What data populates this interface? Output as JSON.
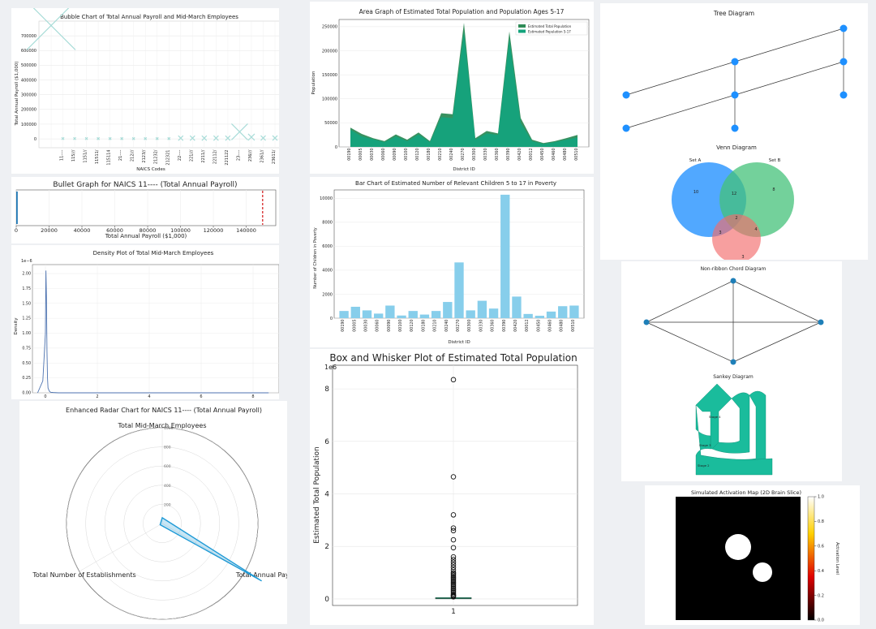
{
  "chart_data": [
    {
      "id": "bubble",
      "type": "scatter",
      "title": "Bubble Chart of Total Annual Payroll and Mid-March Employees",
      "xlabel": "NAICS Codes",
      "ylabel": "Total Annual Payroll ($1,000)",
      "ylim": [
        -60000,
        800000
      ],
      "yticks": [
        "0",
        "100000",
        "200000",
        "300000",
        "400000",
        "500000",
        "600000",
        "700000"
      ],
      "yticks_values": [
        0,
        100000,
        200000,
        300000,
        400000,
        500000,
        600000,
        700000
      ],
      "categories": [
        "------",
        "11----",
        "115///",
        "1151//",
        "11511/",
        "115114",
        "21----",
        "212///",
        "2123//",
        "21232/",
        "212321",
        "22----",
        "221///",
        "2211//",
        "22112/",
        "221122",
        "23----",
        "236///",
        "2361//",
        "23611/"
      ],
      "xtick_labels": [
        "",
        "11----",
        "115///",
        "1151//",
        "11511/",
        "115114",
        "21----",
        "212///",
        "2123//",
        "21232/",
        "212321",
        "22----",
        "221///",
        "2211//",
        "22112/",
        "221122",
        "23----",
        "236///",
        "2361//",
        "23611/"
      ],
      "values": [
        770000,
        2000,
        2000,
        2000,
        1800,
        1500,
        1500,
        1800,
        1800,
        1800,
        1500,
        5000,
        5000,
        5000,
        5000,
        5000,
        48000,
        12000,
        6000,
        6000
      ],
      "sizes": [
        60,
        3,
        3,
        3,
        3,
        3,
        3,
        3,
        3,
        3,
        3,
        6,
        6,
        6,
        6,
        6,
        20,
        8,
        6,
        6
      ]
    },
    {
      "id": "bullet",
      "type": "bar",
      "title": "Bullet Graph for NAICS 11---- (Total Annual Payroll)",
      "xlabel": "Total Annual Payroll ($1,000)",
      "xlim": [
        0,
        158000
      ],
      "xticks": [
        "0",
        "20000",
        "40000",
        "60000",
        "80000",
        "100000",
        "120000",
        "140000"
      ],
      "xticks_values": [
        0,
        20000,
        40000,
        60000,
        80000,
        100000,
        120000,
        140000
      ],
      "value": 900,
      "target": 150000
    },
    {
      "id": "density",
      "type": "line",
      "title": "Density Plot of Total Mid-March Employees",
      "ylabel": "Density",
      "offset_label": "1e−6",
      "xlim": [
        -0.5,
        9.0
      ],
      "ylim": [
        0,
        2.15
      ],
      "xticks": [
        "0",
        "2",
        "4",
        "6",
        "8"
      ],
      "xticks_values": [
        0,
        2,
        4,
        6,
        8
      ],
      "yticks": [
        "0.00",
        "0.25",
        "0.50",
        "0.75",
        "1.00",
        "1.25",
        "1.50",
        "1.75",
        "2.00"
      ],
      "yticks_values": [
        0,
        0.25,
        0.5,
        0.75,
        1.0,
        1.25,
        1.5,
        1.75,
        2.0
      ],
      "x": [
        -0.3,
        -0.1,
        0.0,
        0.02,
        0.04,
        0.06,
        0.08,
        0.1,
        0.15,
        0.2,
        0.3,
        0.5,
        1.0,
        8.6
      ],
      "y": [
        0,
        0.2,
        1.0,
        2.05,
        1.6,
        0.7,
        0.25,
        0.08,
        0.03,
        0.01,
        0.005,
        0,
        0,
        0
      ]
    },
    {
      "id": "radar",
      "type": "line",
      "title": "Enhanced Radar Chart for NAICS 11---- (Total Annual Payroll)",
      "axes": [
        "Total Mid-March Employees",
        "Total Annual Payroll",
        "Total Number of Establishments"
      ],
      "rlim": [
        0,
        1000
      ],
      "rticks": [
        "200",
        "400",
        "600",
        "800",
        "1000"
      ],
      "rticks_values": [
        200,
        400,
        600,
        800,
        1000
      ],
      "values": [
        60,
        1300,
        25
      ]
    },
    {
      "id": "area",
      "type": "area",
      "title": "Area Graph of Estimated Total Population and Population Ages 5-17",
      "xlabel": "District ID",
      "ylabel": "Population",
      "ylim": [
        0,
        265000
      ],
      "legend_position": "top-right",
      "categories": [
        "00190",
        "00005",
        "00030",
        "00060",
        "00090",
        "00100",
        "00120",
        "00180",
        "00210",
        "00240",
        "00270",
        "00300",
        "00330",
        "00360",
        "00390",
        "00420",
        "00012",
        "00450",
        "00460",
        "00480",
        "00510"
      ],
      "xtick_labels": [
        "00190",
        "00005",
        "00030",
        "00060",
        "00090",
        "00100",
        "00120",
        "00180",
        "00210",
        "00240",
        "00270",
        "00300",
        "00330",
        "00360",
        "00390",
        "00420",
        "00012",
        "00450",
        "00460",
        "00480",
        "00510"
      ],
      "yticks": [
        "0",
        "50000",
        "100000",
        "150000",
        "200000",
        "250000"
      ],
      "yticks_values": [
        0,
        50000,
        100000,
        150000,
        200000,
        250000
      ],
      "series": [
        {
          "name": "Estimated Total Population",
          "values": [
            40000,
            27000,
            18000,
            12000,
            26000,
            15000,
            30000,
            12000,
            70000,
            68000,
            258000,
            18000,
            33000,
            28000,
            240000,
            60000,
            15000,
            8000,
            12000,
            18000,
            25000
          ]
        },
        {
          "name": "Estimated Population 5-17",
          "values": [
            36000,
            22000,
            16000,
            10000,
            22000,
            12000,
            26000,
            10000,
            62000,
            60000,
            240000,
            15000,
            28000,
            25000,
            225000,
            50000,
            12000,
            6000,
            10000,
            15000,
            20000
          ]
        }
      ]
    },
    {
      "id": "poverty",
      "type": "bar",
      "title": "Bar Chart of Estimated Number of Relevant Children 5 to 17 in Poverty",
      "xlabel": "District ID",
      "ylabel": "Number of Children in Poverty",
      "ylim": [
        0,
        10700
      ],
      "yticks": [
        "0",
        "2000",
        "4000",
        "6000",
        "8000",
        "10000"
      ],
      "yticks_values": [
        0,
        2000,
        4000,
        6000,
        8000,
        10000
      ],
      "categories": [
        "00190",
        "00005",
        "00030",
        "00060",
        "00090",
        "00100",
        "00120",
        "00180",
        "00210",
        "00240",
        "00270",
        "00300",
        "00330",
        "00360",
        "00390",
        "00420",
        "00012",
        "00450",
        "00460",
        "00480",
        "00510"
      ],
      "xtick_labels": [
        "00190",
        "00005",
        "00030",
        "00060",
        "00090",
        "00100",
        "00120",
        "00180",
        "00210",
        "00240",
        "00270",
        "00300",
        "00330",
        "00360",
        "00390",
        "00420",
        "00012",
        "00450",
        "00460",
        "00480",
        "00510"
      ],
      "values": [
        600,
        950,
        650,
        380,
        1050,
        220,
        600,
        300,
        600,
        1350,
        4650,
        650,
        1450,
        800,
        10300,
        1800,
        350,
        200,
        550,
        1000,
        1050
      ]
    },
    {
      "id": "box",
      "type": "scatter",
      "title": "Box and Whisker Plot of Estimated Total Population",
      "ylabel": "Estimated Total Population",
      "offset_label": "1e6",
      "ylim": [
        -0.25,
        8.9
      ],
      "yticks": [
        "0",
        "2",
        "4",
        "6",
        "8"
      ],
      "yticks_values": [
        0,
        2,
        4,
        6,
        8
      ],
      "xticks": [
        "1"
      ],
      "median": 0.03,
      "q1": 0.01,
      "q3": 0.05,
      "outliers": [
        8.35,
        4.65,
        3.2,
        2.7,
        2.6,
        2.25,
        1.95,
        1.6,
        1.5,
        1.4,
        1.3,
        1.2,
        1.1,
        1.0,
        0.95,
        0.9,
        0.85,
        0.8,
        0.75,
        0.7,
        0.65,
        0.6,
        0.55,
        0.5,
        0.45,
        0.4,
        0.35,
        0.3,
        0.25,
        0.2,
        0.15,
        0.12,
        0.1,
        0.08
      ]
    }
  ],
  "tree": {
    "title": "Tree Diagram"
  },
  "venn": {
    "title": "Venn Diagram",
    "set_a": "Set A",
    "set_b": "Set B",
    "regions": [
      "10",
      "12",
      "8",
      "2",
      "3",
      "4",
      "3"
    ]
  },
  "chord": {
    "title": "Non-ribbon Chord Diagram"
  },
  "sankey": {
    "title": "Sankey Diagram",
    "labels": [
      "Stage 4",
      "Stage 3",
      "Stage 2"
    ]
  },
  "activation": {
    "title": "Simulated Activation Map (2D Brain Slice)",
    "colorbar_label": "Activation Level",
    "ticks": [
      "1.0",
      "0.8",
      "0.6",
      "0.4",
      "0.2",
      "0.0"
    ],
    "ticks_values": [
      1.0,
      0.8,
      0.6,
      0.4,
      0.2,
      0.0
    ]
  },
  "colors": {
    "bubble": "#a8dcd8",
    "bullet_bar": "#1f77b4",
    "bullet_target": "#d62728",
    "density": "#4c72b0",
    "radar": "#1f9ad6",
    "area_total": "#2e8b57",
    "area_517": "#14a37c",
    "bars": "#87ceeb",
    "diagram_node": "#1e7fb8",
    "venn_a": "#3399ff",
    "venn_b": "#44c17a",
    "venn_c": "#f26b6b",
    "sankey": "#1abc9c"
  }
}
